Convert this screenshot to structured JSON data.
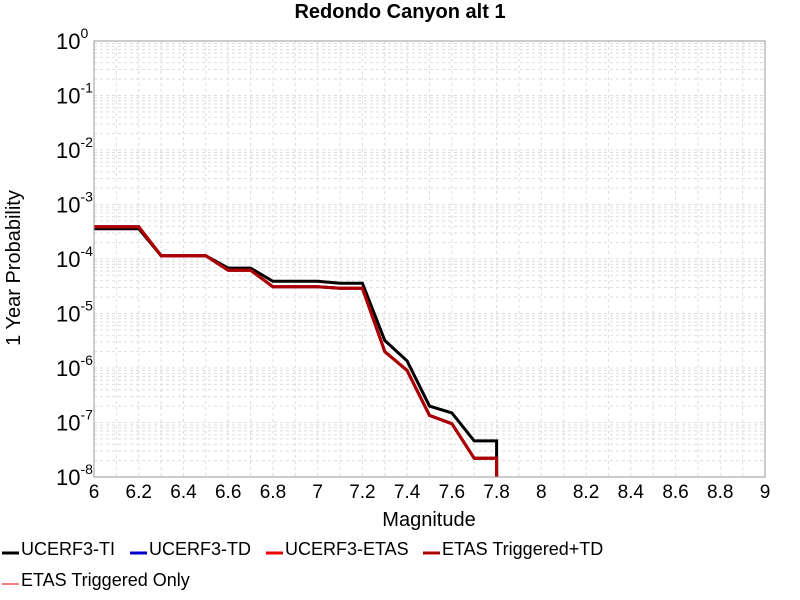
{
  "chart_data": {
    "type": "line",
    "title": "Redondo Canyon alt 1",
    "xlabel": "Magnitude",
    "ylabel": "1 Year Probability",
    "xlim": [
      6,
      9
    ],
    "ylim": [
      1e-08,
      1
    ],
    "yscale": "log",
    "grid": true,
    "x_ticks": [
      "6",
      "6.2",
      "6.4",
      "6.6",
      "6.8",
      "7",
      "7.2",
      "7.4",
      "7.6",
      "7.8",
      "8",
      "8.2",
      "8.4",
      "8.6",
      "8.8",
      "9"
    ],
    "y_ticks": [
      {
        "base": "10",
        "exp": "-8",
        "value": 1e-08
      },
      {
        "base": "10",
        "exp": "-7",
        "value": 1e-07
      },
      {
        "base": "10",
        "exp": "-6",
        "value": 1e-06
      },
      {
        "base": "10",
        "exp": "-5",
        "value": 1e-05
      },
      {
        "base": "10",
        "exp": "-4",
        "value": 0.0001
      },
      {
        "base": "10",
        "exp": "-3",
        "value": 0.001
      },
      {
        "base": "10",
        "exp": "-2",
        "value": 0.01
      },
      {
        "base": "10",
        "exp": "-1",
        "value": 0.1
      },
      {
        "base": "10",
        "exp": "0",
        "value": 1
      }
    ],
    "legend_position": "bottom",
    "series": [
      {
        "name": "UCERF3-TI",
        "color": "#000000",
        "x": [
          6.0,
          6.2,
          6.3,
          6.5,
          6.6,
          6.7,
          6.8,
          7.0,
          7.1,
          7.2,
          7.3,
          7.4,
          7.5,
          7.6,
          7.7,
          7.8,
          7.8
        ],
        "y": [
          0.00036,
          0.00036,
          0.000115,
          0.000115,
          6.8e-05,
          6.8e-05,
          3.9e-05,
          3.9e-05,
          3.6e-05,
          3.6e-05,
          3.2e-06,
          1.35e-06,
          2e-07,
          1.5e-07,
          4.6e-08,
          4.6e-08,
          6.5e-09
        ]
      },
      {
        "name": "UCERF3-TD",
        "color": "#0000cc",
        "x": [
          6.0,
          6.2,
          6.3,
          6.5,
          6.6,
          6.7,
          6.8,
          7.0,
          7.1,
          7.2,
          7.3,
          7.4,
          7.5,
          7.6,
          7.7,
          7.8,
          7.8
        ],
        "y": [
          0.00039,
          0.00039,
          0.000115,
          0.000115,
          6.2e-05,
          6.2e-05,
          3.1e-05,
          3.1e-05,
          2.9e-05,
          2.9e-05,
          2e-06,
          9e-07,
          1.35e-07,
          9.5e-08,
          2.2e-08,
          2.2e-08,
          6.5e-09
        ]
      },
      {
        "name": "UCERF3-ETAS",
        "color": "#ee0000",
        "x": [
          6.0,
          6.2,
          6.3,
          6.5,
          6.6,
          6.7,
          6.8,
          7.0,
          7.1,
          7.2,
          7.3,
          7.4,
          7.5,
          7.6,
          7.7,
          7.8,
          7.8
        ],
        "y": [
          0.00039,
          0.00039,
          0.000115,
          0.000115,
          6.2e-05,
          6.2e-05,
          3.1e-05,
          3.1e-05,
          2.9e-05,
          2.9e-05,
          2e-06,
          9e-07,
          1.35e-07,
          9.5e-08,
          2.2e-08,
          2.2e-08,
          6.5e-09
        ]
      },
      {
        "name": "ETAS Triggered+TD",
        "color": "#aa0000",
        "x": [
          6.0,
          6.2,
          6.3,
          6.5,
          6.6,
          6.7,
          6.8,
          7.0,
          7.1,
          7.2,
          7.3,
          7.4,
          7.5,
          7.6,
          7.7,
          7.8,
          7.8
        ],
        "y": [
          0.00039,
          0.00039,
          0.000115,
          0.000115,
          6.2e-05,
          6.2e-05,
          3.1e-05,
          3.1e-05,
          2.9e-05,
          2.9e-05,
          2e-06,
          9e-07,
          1.35e-07,
          9.5e-08,
          2.2e-08,
          2.2e-08,
          6.5e-09
        ]
      },
      {
        "name": "ETAS Triggered Only",
        "color": "#f08080",
        "x": [],
        "y": []
      }
    ]
  }
}
